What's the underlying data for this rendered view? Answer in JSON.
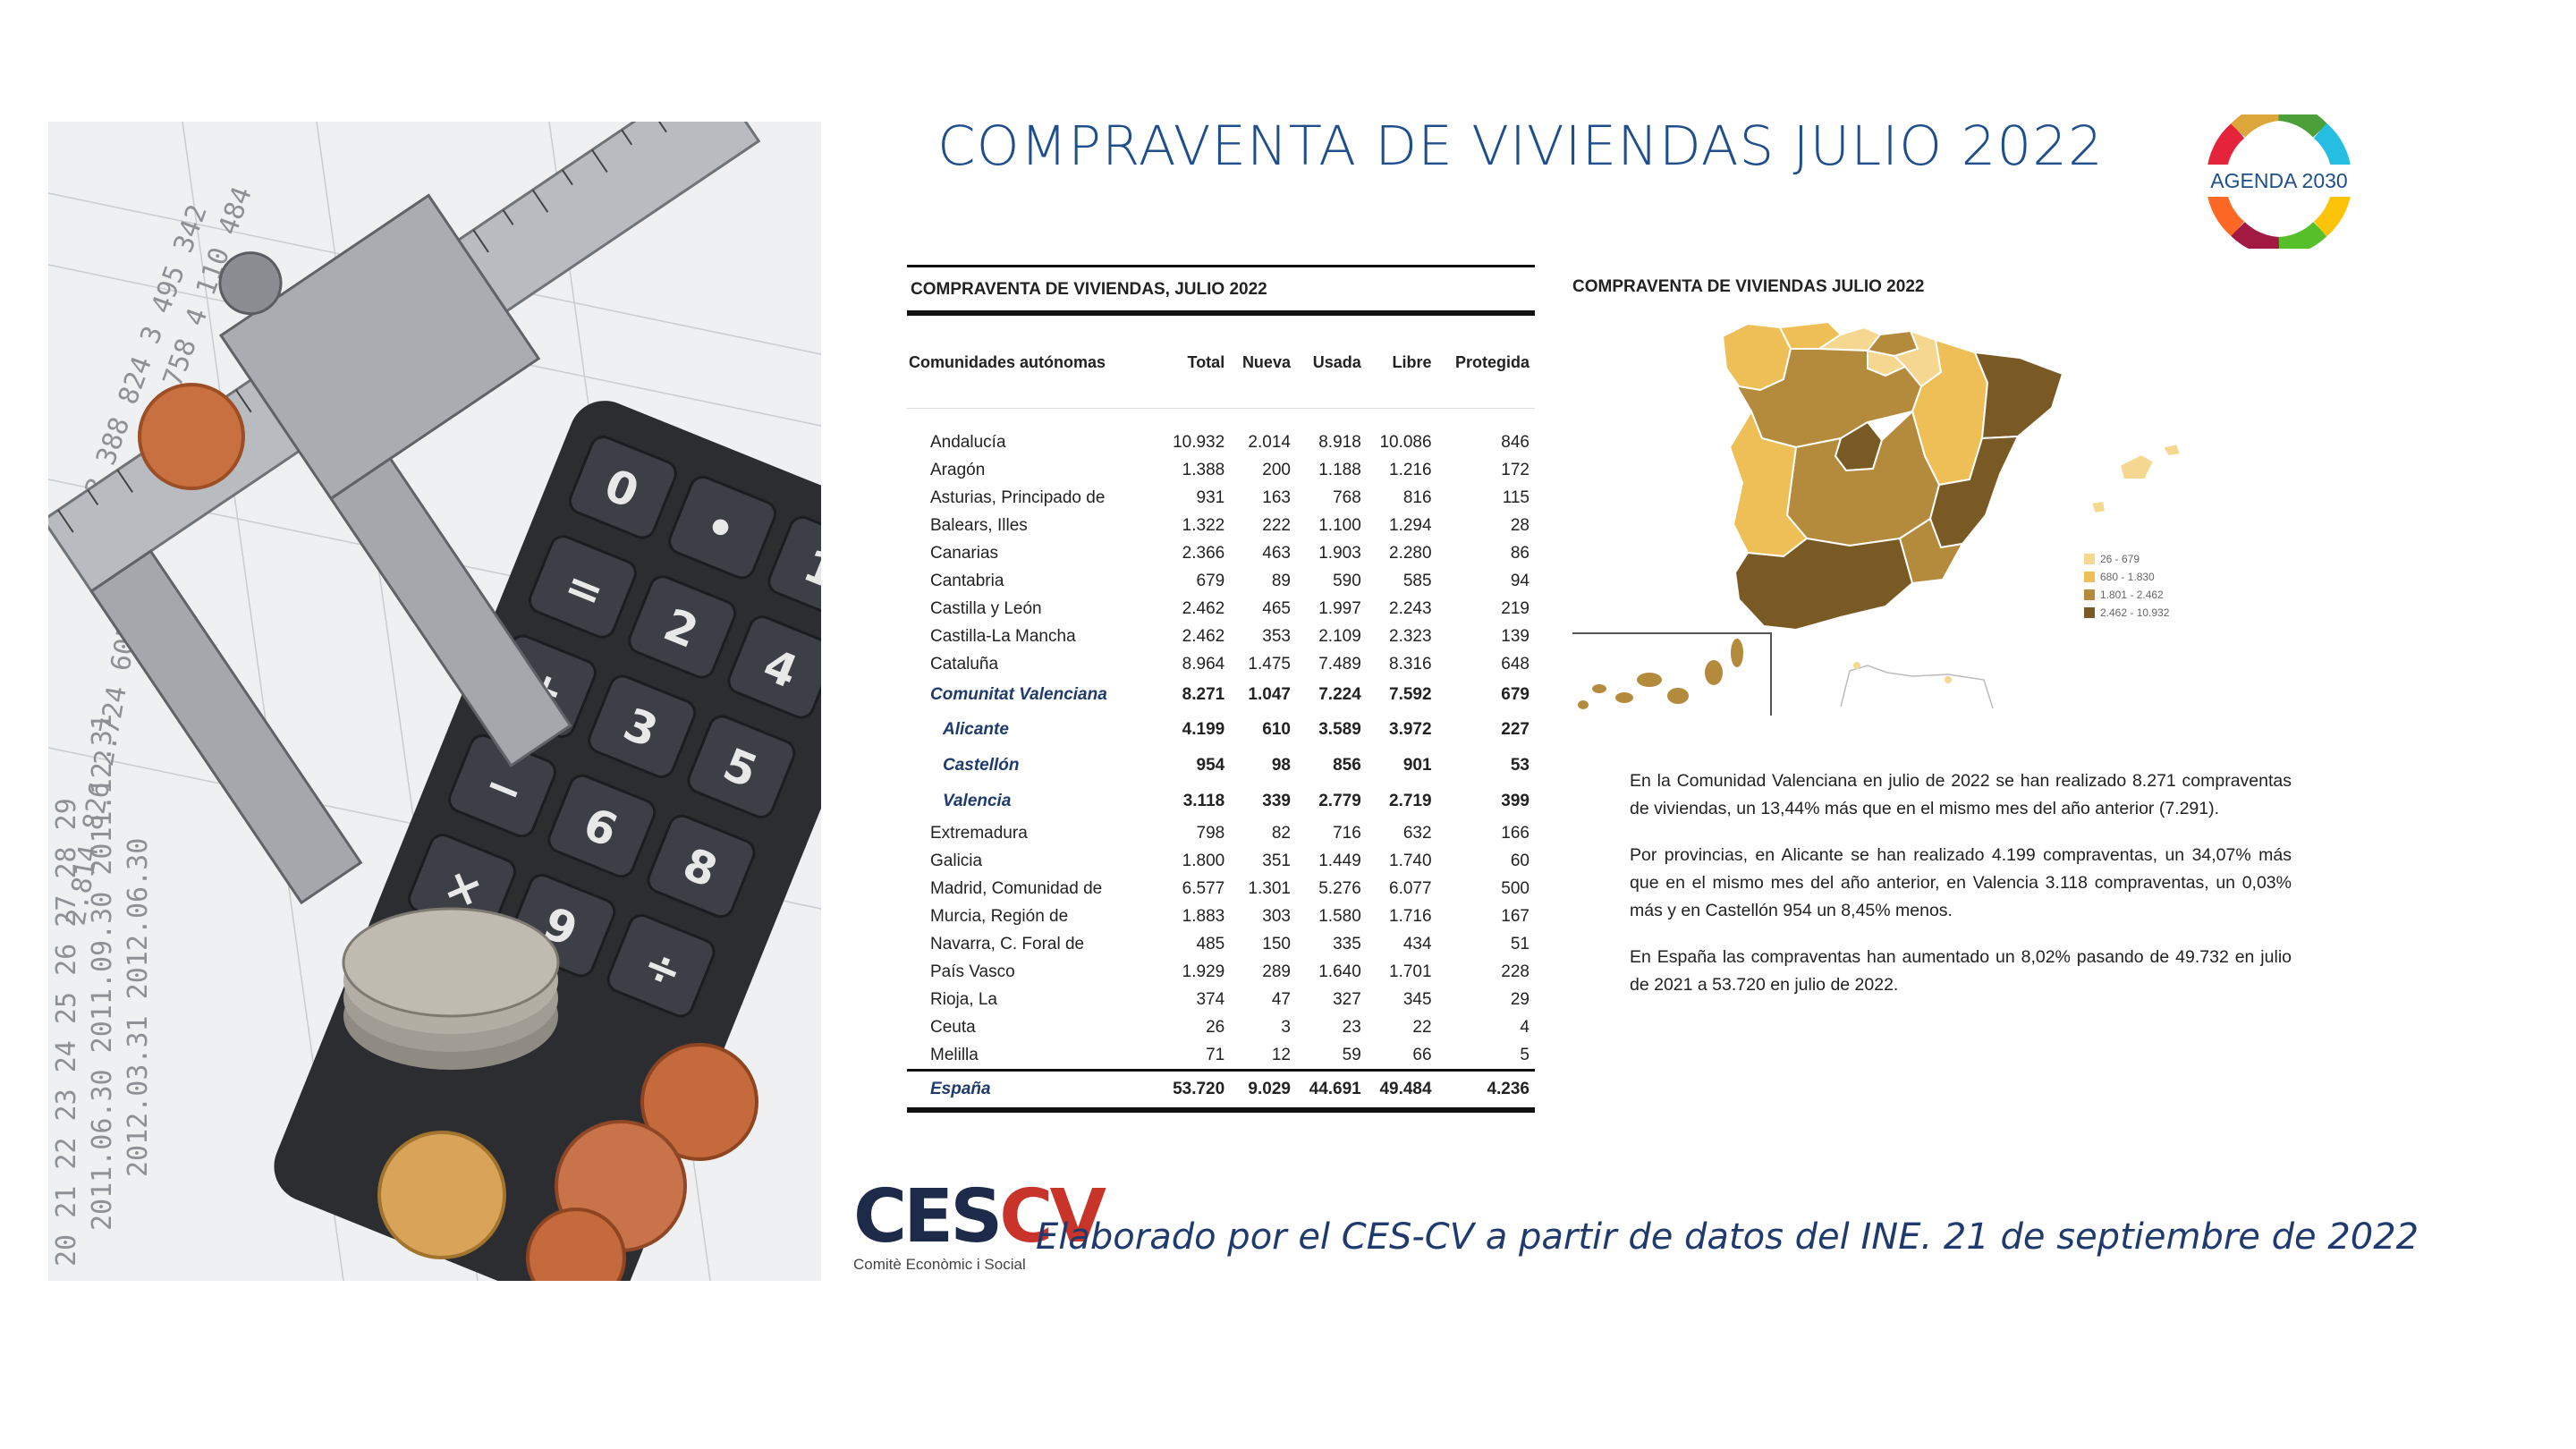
{
  "header": {
    "title": "COMPRAVENTA DE VIVIENDAS JULIO 2022",
    "logo_text": "AGENDA 2030"
  },
  "table": {
    "title": "COMPRAVENTA DE VIVIENDAS, JULIO 2022",
    "columns": [
      "Comunidades autónomas",
      "Total",
      "Nueva",
      "Usada",
      "Libre",
      "Protegida"
    ],
    "rows": [
      {
        "name": "Andalucía",
        "total": "10.932",
        "nueva": "2.014",
        "usada": "8.918",
        "libre": "10.086",
        "protegida": "846"
      },
      {
        "name": "Aragón",
        "total": "1.388",
        "nueva": "200",
        "usada": "1.188",
        "libre": "1.216",
        "protegida": "172"
      },
      {
        "name": "Asturias, Principado de",
        "total": "931",
        "nueva": "163",
        "usada": "768",
        "libre": "816",
        "protegida": "115"
      },
      {
        "name": "Balears, Illes",
        "total": "1.322",
        "nueva": "222",
        "usada": "1.100",
        "libre": "1.294",
        "protegida": "28"
      },
      {
        "name": "Canarias",
        "total": "2.366",
        "nueva": "463",
        "usada": "1.903",
        "libre": "2.280",
        "protegida": "86"
      },
      {
        "name": "Cantabria",
        "total": "679",
        "nueva": "89",
        "usada": "590",
        "libre": "585",
        "protegida": "94"
      },
      {
        "name": "Castilla y León",
        "total": "2.462",
        "nueva": "465",
        "usada": "1.997",
        "libre": "2.243",
        "protegida": "219"
      },
      {
        "name": "Castilla-La Mancha",
        "total": "2.462",
        "nueva": "353",
        "usada": "2.109",
        "libre": "2.323",
        "protegida": "139"
      },
      {
        "name": "Cataluña",
        "total": "8.964",
        "nueva": "1.475",
        "usada": "7.489",
        "libre": "8.316",
        "protegida": "648"
      }
    ],
    "cv_row": {
      "name": "Comunitat Valenciana",
      "total": "8.271",
      "nueva": "1.047",
      "usada": "7.224",
      "libre": "7.592",
      "protegida": "679"
    },
    "province_rows": [
      {
        "name": "Alicante",
        "total": "4.199",
        "nueva": "610",
        "usada": "3.589",
        "libre": "3.972",
        "protegida": "227"
      },
      {
        "name": "Castellón",
        "total": "954",
        "nueva": "98",
        "usada": "856",
        "libre": "901",
        "protegida": "53"
      },
      {
        "name": "Valencia",
        "total": "3.118",
        "nueva": "339",
        "usada": "2.779",
        "libre": "2.719",
        "protegida": "399"
      }
    ],
    "rows_after": [
      {
        "name": "Extremadura",
        "total": "798",
        "nueva": "82",
        "usada": "716",
        "libre": "632",
        "protegida": "166"
      },
      {
        "name": "Galicia",
        "total": "1.800",
        "nueva": "351",
        "usada": "1.449",
        "libre": "1.740",
        "protegida": "60"
      },
      {
        "name": "Madrid, Comunidad de",
        "total": "6.577",
        "nueva": "1.301",
        "usada": "5.276",
        "libre": "6.077",
        "protegida": "500"
      },
      {
        "name": "Murcia, Región de",
        "total": "1.883",
        "nueva": "303",
        "usada": "1.580",
        "libre": "1.716",
        "protegida": "167"
      },
      {
        "name": "Navarra, C. Foral de",
        "total": "485",
        "nueva": "150",
        "usada": "335",
        "libre": "434",
        "protegida": "51"
      },
      {
        "name": "País Vasco",
        "total": "1.929",
        "nueva": "289",
        "usada": "1.640",
        "libre": "1.701",
        "protegida": "228"
      },
      {
        "name": "Rioja, La",
        "total": "374",
        "nueva": "47",
        "usada": "327",
        "libre": "345",
        "protegida": "29"
      },
      {
        "name": "Ceuta",
        "total": "26",
        "nueva": "3",
        "usada": "23",
        "libre": "22",
        "protegida": "4"
      },
      {
        "name": "Melilla",
        "total": "71",
        "nueva": "12",
        "usada": "59",
        "libre": "66",
        "protegida": "5"
      }
    ],
    "total_row": {
      "name": "España",
      "total": "53.720",
      "nueva": "9.029",
      "usada": "44.691",
      "libre": "49.484",
      "protegida": "4.236"
    }
  },
  "map": {
    "title": "COMPRAVENTA DE VIVIENDAS JULIO 2022",
    "legend": [
      {
        "label": "26 - 679",
        "color": "#f6d790"
      },
      {
        "label": "680 - 1.830",
        "color": "#eebf57"
      },
      {
        "label": "1.801 - 2.462",
        "color": "#b48b3c"
      },
      {
        "label": "2.462 - 10.932",
        "color": "#7a5a24"
      }
    ]
  },
  "text": {
    "p1": "En la Comunidad Valenciana en julio de 2022 se han realizado 8.271 compraventas de viviendas, un 13,44% más que en el mismo mes del año anterior (7.291).",
    "p2": "Por provincias, en Alicante se han realizado 4.199 compraventas, un 34,07% más que en el mismo mes del año anterior, en Valencia 3.118 compraventas, un 0,03% más y en Castellón 954 un 8,45% menos.",
    "p3": "En España las compraventas han aumentado un 8,02% pasando de 49.732 en julio de 2021 a 53.720 en julio de 2022."
  },
  "footer": {
    "logo_ces": "CES",
    "logo_cv": "CV",
    "logo_subtitle": "Comitè Econòmic i Social",
    "caption": "Elaborado por el CES-CV a partir de datos del INE. 21 de septiembre de 2022"
  }
}
